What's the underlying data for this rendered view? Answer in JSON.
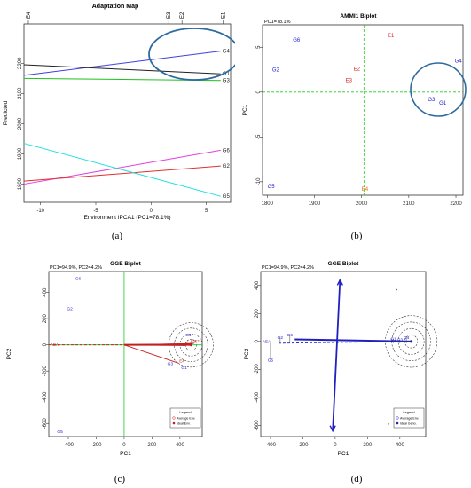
{
  "captions": [
    "(a)",
    "(b)",
    "(c)",
    "(d)"
  ],
  "chart_data": [
    {
      "panel": "a",
      "type": "line",
      "title": "Adaptation Map",
      "xlabel": "Environment IPCA1 (PC1=78.1%)",
      "ylabel": "Predicted",
      "xlim": [
        -11.5,
        7.2
      ],
      "ylim": [
        1740,
        2330
      ],
      "x_ticks": [
        -10,
        -5,
        0,
        5
      ],
      "y_ticks": [
        1800,
        1900,
        2000,
        2100,
        2200
      ],
      "env_ticks": [
        {
          "label": "E4",
          "x": -11.1
        },
        {
          "label": "E3",
          "x": 1.6
        },
        {
          "label": "E2",
          "x": 2.8
        },
        {
          "label": "E1",
          "x": 6.5
        }
      ],
      "series": [
        {
          "name": "G4",
          "color": "#4040e0",
          "x": [
            -11.5,
            6.3
          ],
          "y": [
            2160,
            2240
          ]
        },
        {
          "name": "G1",
          "color": "#202020",
          "x": [
            -11.5,
            6.3
          ],
          "y": [
            2195,
            2165
          ]
        },
        {
          "name": "G3",
          "color": "#20c020",
          "x": [
            -11.5,
            6.3
          ],
          "y": [
            2150,
            2143
          ]
        },
        {
          "name": "G6",
          "color": "#e040e0",
          "x": [
            -11.5,
            6.3
          ],
          "y": [
            1800,
            1912
          ]
        },
        {
          "name": "G2",
          "color": "#e03030",
          "x": [
            -11.5,
            6.3
          ],
          "y": [
            1810,
            1860
          ]
        },
        {
          "name": "G5",
          "color": "#20e0e0",
          "x": [
            -11.5,
            6.3
          ],
          "y": [
            1935,
            1760
          ]
        }
      ]
    },
    {
      "panel": "b",
      "type": "scatter",
      "title": "AMMI1 Biplot",
      "subtitle": "PC1=78.1%",
      "xlabel": "",
      "ylabel": "PC1",
      "xlim": [
        1790,
        2215
      ],
      "ylim": [
        -11.5,
        7.5
      ],
      "x_ticks": [
        1800,
        1900,
        2000,
        2100,
        2200
      ],
      "y_ticks": [
        -10,
        -5,
        0,
        5
      ],
      "points": [
        {
          "label": "G6",
          "x": 1862,
          "y": 5.8,
          "color": "#2020d0"
        },
        {
          "label": "G2",
          "x": 1818,
          "y": 2.5,
          "color": "#2020d0"
        },
        {
          "label": "G5",
          "x": 1808,
          "y": -10.5,
          "color": "#2020d0"
        },
        {
          "label": "G4",
          "x": 2205,
          "y": 3.5,
          "color": "#2020d0"
        },
        {
          "label": "G3",
          "x": 2148,
          "y": -0.8,
          "color": "#2020d0"
        },
        {
          "label": "G1",
          "x": 2172,
          "y": -1.2,
          "color": "#2020d0"
        },
        {
          "label": "E1",
          "x": 2062,
          "y": 6.3,
          "color": "#e02020"
        },
        {
          "label": "E2",
          "x": 1990,
          "y": 2.6,
          "color": "#e02020"
        },
        {
          "label": "E3",
          "x": 1973,
          "y": 1.3,
          "color": "#e02020"
        },
        {
          "label": "E4",
          "x": 2007,
          "y": -10.8,
          "color": "#e07000"
        }
      ],
      "mean_x": 2005
    },
    {
      "panel": "c",
      "type": "scatter",
      "title": "GGE Biplot",
      "subtitle": "PC1=94.9%, PC2=4.2%",
      "xlabel": "PC1",
      "ylabel": "PC2",
      "xlim": [
        -540,
        560
      ],
      "ylim": [
        -700,
        560
      ],
      "x_ticks": [
        -400,
        -200,
        0,
        200,
        400
      ],
      "y_ticks": [
        -600,
        -400,
        -200,
        0,
        200,
        400
      ],
      "genotypes": [
        {
          "label": "G6",
          "x": -330,
          "y": 510
        },
        {
          "label": "G2",
          "x": -390,
          "y": 280
        },
        {
          "label": "G5",
          "x": -460,
          "y": -660
        },
        {
          "label": "G4",
          "x": 460,
          "y": 80
        },
        {
          "label": "G1",
          "x": 430,
          "y": -170
        },
        {
          "label": "G3",
          "x": 330,
          "y": -140
        }
      ],
      "environments": [
        {
          "label": "E1",
          "x": 500,
          "y": 10
        },
        {
          "label": "E2",
          "x": 470,
          "y": 8
        },
        {
          "label": "E3",
          "x": 440,
          "y": -5
        },
        {
          "label": "E4",
          "x": 390,
          "y": -140
        }
      ],
      "ideal": {
        "x": 480,
        "y": 0
      },
      "aea_label": "AEA",
      "legend": {
        "title": "Legend",
        "items": [
          "Average Env.",
          "Ideal Env."
        ]
      }
    },
    {
      "panel": "d",
      "type": "scatter",
      "title": "GGE Biplot",
      "subtitle": "PC1=94.9%, PC2=4.2%",
      "xlabel": "PC1",
      "ylabel": "PC2",
      "xlim": [
        -460,
        560
      ],
      "ylim": [
        -680,
        500
      ],
      "x_ticks": [
        -400,
        -200,
        0,
        200,
        400
      ],
      "y_ticks": [
        -600,
        -400,
        -200,
        0,
        200,
        400
      ],
      "genotypes": [
        {
          "label": "G5",
          "x": -400,
          "y": -130
        },
        {
          "label": "G2",
          "x": -340,
          "y": 30
        },
        {
          "label": "G6",
          "x": -280,
          "y": 50
        },
        {
          "label": "G1",
          "x": 360,
          "y": 20
        },
        {
          "label": "G3",
          "x": 400,
          "y": 15
        },
        {
          "label": "G4",
          "x": 440,
          "y": 30
        }
      ],
      "outliers": [
        {
          "x": 380,
          "y": 370
        },
        {
          "x": 330,
          "y": -590
        }
      ],
      "ideal": {
        "x": 470,
        "y": 0
      },
      "aea_label": "AEA",
      "legend": {
        "title": "Legend",
        "items": [
          "Average Env.",
          "Ideal Geno."
        ]
      }
    }
  ]
}
